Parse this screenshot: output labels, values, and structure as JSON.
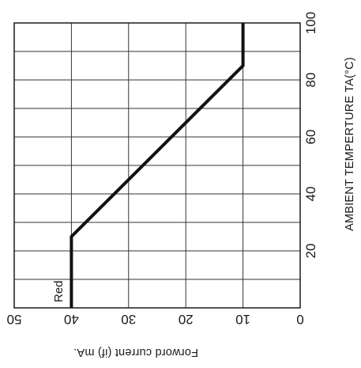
{
  "chart_data": {
    "type": "line",
    "title": "",
    "xlabel": "AMBIENT TEMPERTURE TA(°C)",
    "ylabel": "Forword current (if) mA.",
    "xlim": [
      0,
      100
    ],
    "ylim": [
      0,
      50
    ],
    "x_ticks": [
      "20",
      "40",
      "60",
      "80",
      "100"
    ],
    "y_ticks": [
      "0",
      "10",
      "20",
      "30",
      "40",
      "50"
    ],
    "grid": true,
    "orientation": "rotated-90-clockwise",
    "series": [
      {
        "name": "Red",
        "x": [
          0,
          25,
          85,
          100
        ],
        "y": [
          40,
          40,
          10,
          10
        ]
      }
    ]
  }
}
